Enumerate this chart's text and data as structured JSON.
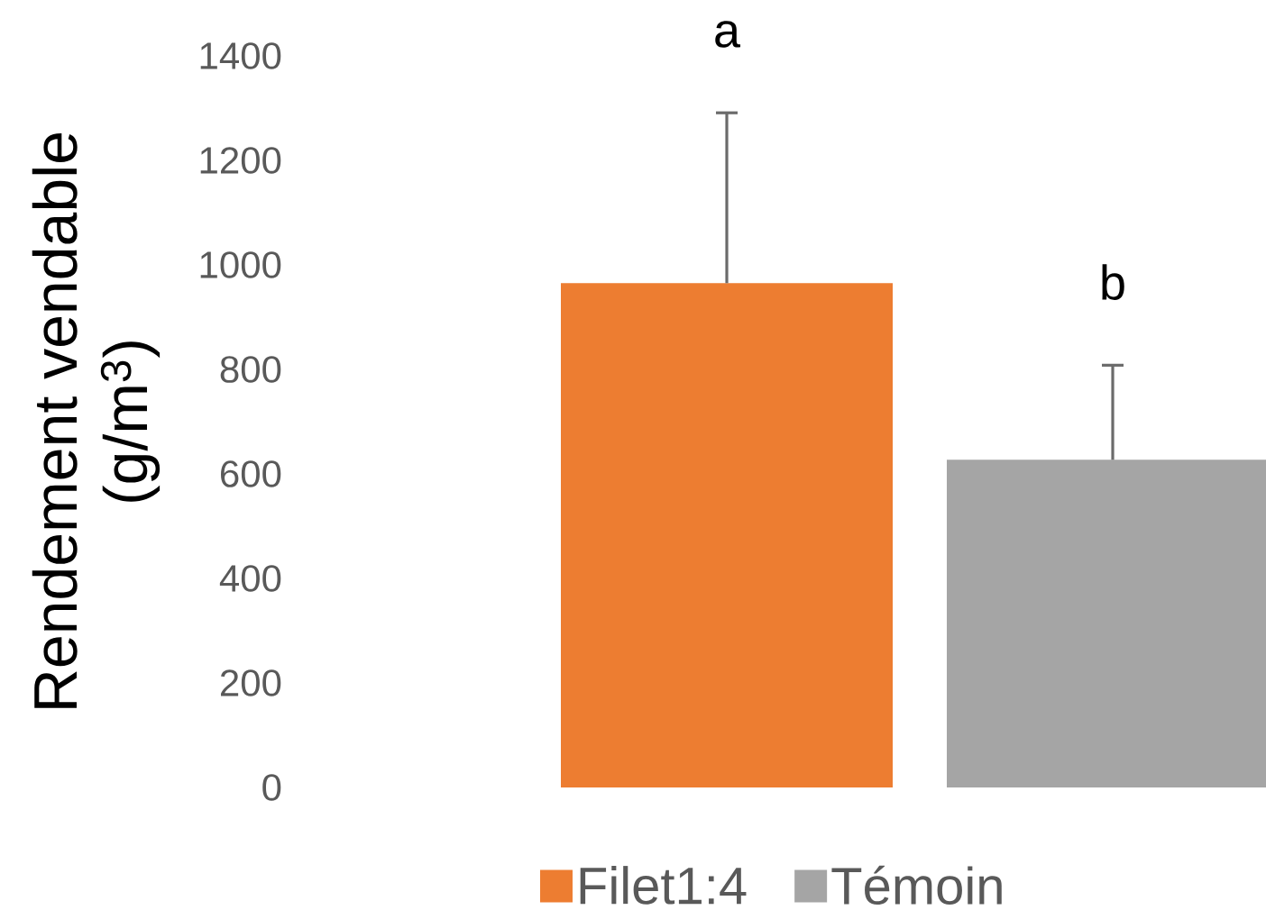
{
  "chart_data": {
    "type": "bar",
    "categories": [
      null
    ],
    "series": [
      {
        "name": "Filet1:4",
        "color": "#ed7d31",
        "values": [
          965
        ],
        "errors": [
          [
            965,
            1291
          ]
        ]
      },
      {
        "name": "Témoin",
        "color": "#a5a5a5",
        "values": [
          627
        ],
        "errors": [
          [
            627,
            808
          ]
        ]
      }
    ],
    "ylabel": "Rendement vendable (g/m$^{3}$)",
    "ylim": [
      0,
      1400
    ],
    "yticks": [
      0,
      200,
      400,
      600,
      800,
      1000,
      1200,
      1400
    ],
    "annotations": [
      "a",
      "b"
    ],
    "legend": "bottom"
  }
}
